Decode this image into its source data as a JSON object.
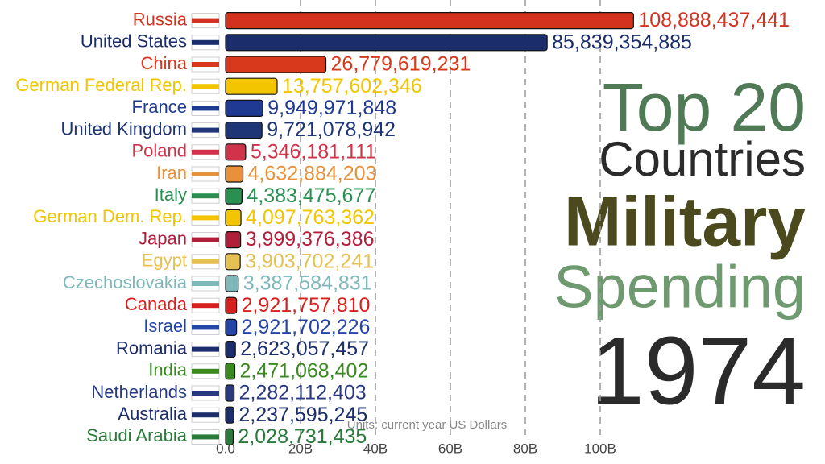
{
  "chart_data": {
    "type": "bar",
    "orientation": "horizontal",
    "title_lines": [
      "Top 20",
      "Countries",
      "Military",
      "Spending"
    ],
    "year": "1974",
    "x_axis_label": "Units: current year US Dollars",
    "categories": [
      "Russia",
      "United States",
      "China",
      "German Federal Rep.",
      "France",
      "United Kingdom",
      "Poland",
      "Iran",
      "Italy",
      "German Dem. Rep.",
      "Japan",
      "Egypt",
      "Czechoslovakia",
      "Canada",
      "Israel",
      "Romania",
      "India",
      "Netherlands",
      "Australia",
      "Saudi Arabia"
    ],
    "values": [
      108888437441,
      85839354885,
      26779619231,
      13757602346,
      9949971848,
      9721078942,
      5346181111,
      4632884203,
      4383475677,
      4097763362,
      3999376386,
      3903702241,
      3387584831,
      2921757810,
      2921702226,
      2623057457,
      2471068402,
      2282112403,
      2237595245,
      2028731435
    ],
    "value_labels": [
      "108,888,437,441",
      "85,839,354,885",
      "26,779,619,231",
      "13,757,602,346",
      "9,949,971,848",
      "9,721,078,942",
      "5,346,181,111",
      "4,632,884,203",
      "4,383,475,677",
      "4,097,763,362",
      "3,999,376,386",
      "3,903,702,241",
      "3,387,584,831",
      "2,921,757,810",
      "2,921,702,226",
      "2,623,057,457",
      "2,471,068,402",
      "2,282,112,403",
      "2,237,595,245",
      "2,028,731,435"
    ],
    "colors": [
      "#d3321f",
      "#1b2d6b",
      "#d8381c",
      "#f2c500",
      "#1f3a93",
      "#1f3676",
      "#d1344a",
      "#e8913a",
      "#2a9050",
      "#f2c500",
      "#b01e3a",
      "#e6c050",
      "#7fb8b8",
      "#d8201e",
      "#2545a8",
      "#1b2d6b",
      "#3a8a20",
      "#2a3a80",
      "#1b2d6b",
      "#2a7a3a"
    ],
    "xlim": [
      0,
      120000000000
    ],
    "xticks": [
      {
        "value": 0,
        "label": "0.0"
      },
      {
        "value": 20000000000,
        "label": "20B"
      },
      {
        "value": 40000000000,
        "label": "40B"
      },
      {
        "value": 60000000000,
        "label": "60B"
      },
      {
        "value": 80000000000,
        "label": "80B"
      },
      {
        "value": 100000000000,
        "label": "100B"
      }
    ],
    "grid": true
  }
}
